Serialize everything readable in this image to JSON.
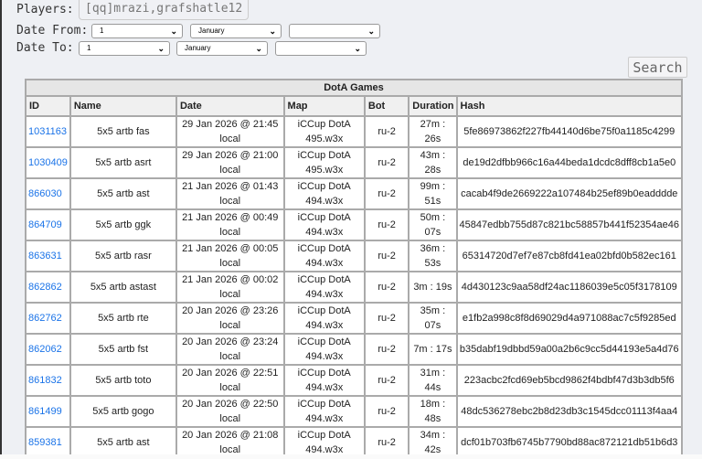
{
  "filters": {
    "players_label": "Players:",
    "players_value": "[qq]mrazi,grafshatle12",
    "date_from_label": "Date From:",
    "date_from": {
      "day": "1",
      "month": "January",
      "year": ""
    },
    "date_to_label": "Date To:",
    "date_to": {
      "day": "1",
      "month": "January",
      "year": ""
    },
    "search_label": "Search"
  },
  "table": {
    "caption": "DotA Games",
    "headers": [
      "ID",
      "Name",
      "Date",
      "Map",
      "Bot",
      "Duration",
      "Hash"
    ],
    "rows": [
      {
        "id": "1031163",
        "name": "5x5 artb fas",
        "date": "29 Jan 2026 @ 21:45 local",
        "map": "iCCup DotA 495.w3x",
        "bot": "ru-2",
        "duration": "27m : 26s",
        "hash": "5fe86973862f227fb44140d6be75f0a1185c4299"
      },
      {
        "id": "1030409",
        "name": "5x5 artb asrt",
        "date": "29 Jan 2026 @ 21:00 local",
        "map": "iCCup DotA 495.w3x",
        "bot": "ru-2",
        "duration": "43m : 28s",
        "hash": "de19d2dfbb966c16a44beda1dcdc8dff8cb1a5e0"
      },
      {
        "id": "866030",
        "name": "5x5 artb ast",
        "date": "21 Jan 2026 @ 01:43 local",
        "map": "iCCup DotA 494.w3x",
        "bot": "ru-2",
        "duration": "99m : 51s",
        "hash": "cacab4f9de2669222a107484b25ef89b0eadddde"
      },
      {
        "id": "864709",
        "name": "5x5 artb ggk",
        "date": "21 Jan 2026 @ 00:49 local",
        "map": "iCCup DotA 494.w3x",
        "bot": "ru-2",
        "duration": "50m : 07s",
        "hash": "45847edbb755d87c821bc58857b441f52354ae46"
      },
      {
        "id": "863631",
        "name": "5x5 artb rasr",
        "date": "21 Jan 2026 @ 00:05 local",
        "map": "iCCup DotA 494.w3x",
        "bot": "ru-2",
        "duration": "36m : 53s",
        "hash": "65314720d7ef7e87cb8fd41ea02bfd0b582ec161"
      },
      {
        "id": "862862",
        "name": "5x5 artb astast",
        "date": "21 Jan 2026 @ 00:02 local",
        "map": "iCCup DotA 494.w3x",
        "bot": "ru-2",
        "duration": "3m : 19s",
        "hash": "4d430123c9aa58df24ac1186039e5c05f3178109"
      },
      {
        "id": "862762",
        "name": "5x5 artb rte",
        "date": "20 Jan 2026 @ 23:26 local",
        "map": "iCCup DotA 494.w3x",
        "bot": "ru-2",
        "duration": "35m : 07s",
        "hash": "e1fb2a998c8f8d69029d4a971088ac7c5f9285ed"
      },
      {
        "id": "862062",
        "name": "5x5 artb fst",
        "date": "20 Jan 2026 @ 23:24 local",
        "map": "iCCup DotA 494.w3x",
        "bot": "ru-2",
        "duration": "7m : 17s",
        "hash": "b35dabf19dbbd59a00a2b6c9cc5d44193e5a4d76"
      },
      {
        "id": "861832",
        "name": "5x5 artb toto",
        "date": "20 Jan 2026 @ 22:51 local",
        "map": "iCCup DotA 494.w3x",
        "bot": "ru-2",
        "duration": "31m : 44s",
        "hash": "223acbc2fcd69eb5bcd9862f4bdbf47d3b3db5f6"
      },
      {
        "id": "861499",
        "name": "5x5 artb gogo",
        "date": "20 Jan 2026 @ 22:50 local",
        "map": "iCCup DotA 494.w3x",
        "bot": "ru-2",
        "duration": "18m : 48s",
        "hash": "48dc536278ebc2b8d23db3c1545dcc01113f4aa4"
      },
      {
        "id": "859381",
        "name": "5x5 artb ast",
        "date": "20 Jan 2026 @ 21:08 local",
        "map": "iCCup DotA 494.w3x",
        "bot": "ru-2",
        "duration": "34m : 42s",
        "hash": "dcf01b703fb6745b7790bd88ac872121db51b6d3"
      }
    ]
  }
}
